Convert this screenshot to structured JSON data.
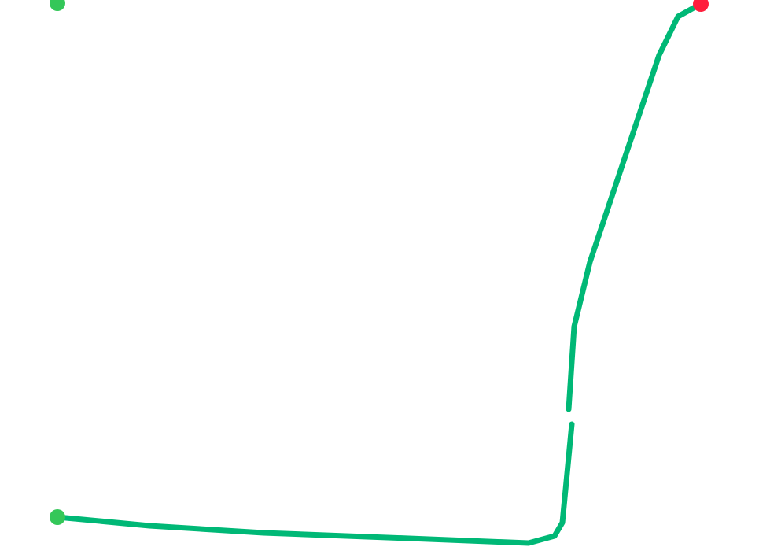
{
  "map": {
    "route_color": "#00b876",
    "start_marker_color": "#34c759",
    "end_marker_color": "#ff1f3d",
    "markers": [
      {
        "type": "start",
        "icon": "start-dot-icon"
      },
      {
        "type": "waypoint",
        "icon": "start-dot-icon"
      },
      {
        "type": "end",
        "icon": "end-dot-icon"
      }
    ]
  }
}
